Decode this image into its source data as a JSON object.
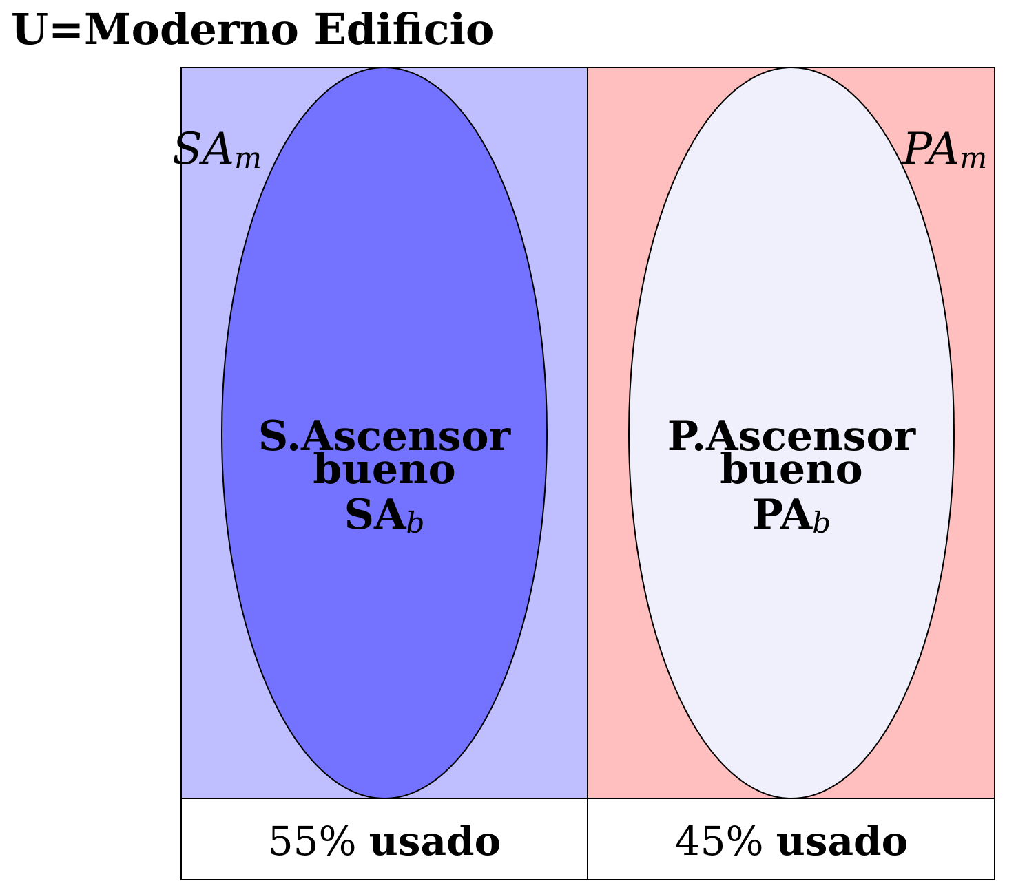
{
  "title": "U=Moderno Edificio",
  "colors": {
    "left_region": "#bfbfff",
    "left_ellipse": "#7373ff",
    "right_region": "#ffbfbf",
    "right_ellipse": "#f0f0fc",
    "stroke": "#000000"
  },
  "left": {
    "corner_label": {
      "base": "SA",
      "sub": "m"
    },
    "center_lines": [
      "S.Ascensor",
      "bueno"
    ],
    "center_symbol": {
      "base": "SA",
      "sub": "b"
    },
    "percent": "55%",
    "usage_word": "usado"
  },
  "right": {
    "corner_label": {
      "base": "PA",
      "sub": "m"
    },
    "center_lines": [
      "P.Ascensor",
      "bueno"
    ],
    "center_symbol": {
      "base": "PA",
      "sub": "b"
    },
    "percent": "45%",
    "usage_word": "usado"
  }
}
